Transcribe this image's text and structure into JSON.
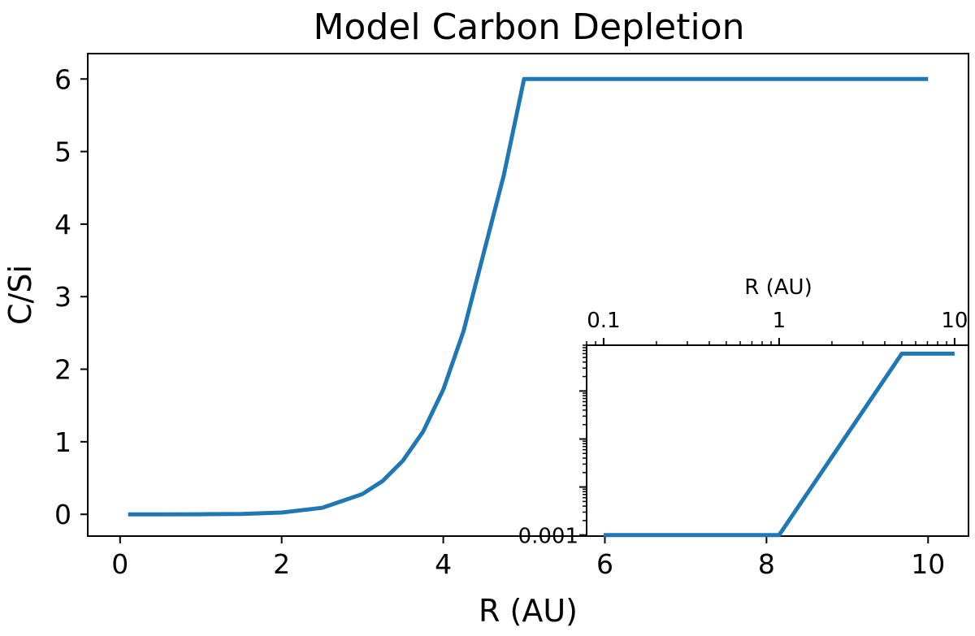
{
  "chart_data": [
    {
      "type": "line",
      "title": "Model Carbon Depletion",
      "xlabel": "R (AU)",
      "ylabel": "C/Si",
      "xlim": [
        -0.4,
        10.5
      ],
      "ylim": [
        -0.3,
        6.35
      ],
      "xticks": [
        0,
        2,
        4,
        6,
        8,
        10
      ],
      "yticks": [
        0,
        1,
        2,
        3,
        4,
        5,
        6
      ],
      "xticklabels": [
        "0",
        "2",
        "4",
        "6",
        "8",
        "10"
      ],
      "yticklabels": [
        "0",
        "1",
        "2",
        "3",
        "4",
        "5",
        "6"
      ],
      "grid": false,
      "legend": "none",
      "series": [
        {
          "color": "#1f77b4",
          "x": [
            0.1,
            0.5,
            1.0,
            1.5,
            2.0,
            2.5,
            3.0,
            3.25,
            3.5,
            3.75,
            4.0,
            4.25,
            4.5,
            4.75,
            5.0,
            10.0
          ],
          "y": [
            0.0,
            0.0,
            0.001,
            0.006,
            0.025,
            0.09,
            0.28,
            0.46,
            0.74,
            1.14,
            1.72,
            2.52,
            3.6,
            4.68,
            6.0,
            6.0
          ]
        }
      ]
    },
    {
      "type": "line",
      "title": "",
      "xlabel": "R (AU)",
      "ylabel": "",
      "xscale": "log",
      "yscale": "log",
      "xlim": [
        0.08,
        12
      ],
      "ylim": [
        0.00095,
        9
      ],
      "xticks": [
        0.1,
        1,
        10
      ],
      "xticklabels": [
        "0.1",
        "1",
        "10"
      ],
      "yticks": [
        0.001
      ],
      "yticklabels": [
        "0.001"
      ],
      "x_axis_position": "top",
      "placement": "bottom-right",
      "series": [
        {
          "color": "#1f77b4",
          "x": [
            0.1,
            1.0,
            5.0,
            10.0
          ],
          "y": [
            0.001,
            0.001,
            6.0,
            6.0
          ]
        }
      ]
    }
  ]
}
